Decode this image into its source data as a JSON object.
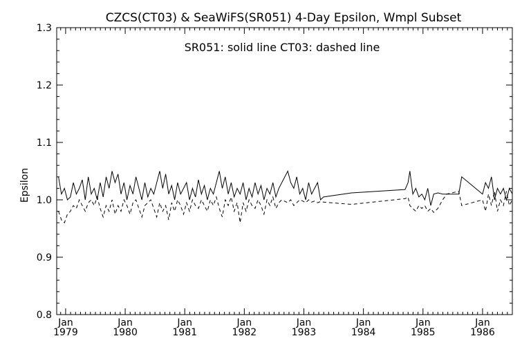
{
  "chart_data": {
    "type": "line",
    "title": "CZCS(CT03) & SeaWiFS(SR051) 4-Day Epsilon, Wmpl Subset",
    "annotation": "SR051: solid line   CT03: dashed line",
    "ylabel": "Epsilon",
    "xlabel": "",
    "ylim": [
      0.8,
      1.3
    ],
    "yticks": [
      "0.8",
      "0.9",
      "1.0",
      "1.1",
      "1.2",
      "1.3"
    ],
    "xlim": [
      1978.85,
      1986.5
    ],
    "xticks": [
      {
        "month": "Jan",
        "year": "1979"
      },
      {
        "month": "Jan",
        "year": "1980"
      },
      {
        "month": "Jan",
        "year": "1981"
      },
      {
        "month": "Jan",
        "year": "1982"
      },
      {
        "month": "Jan",
        "year": "1983"
      },
      {
        "month": "Jan",
        "year": "1984"
      },
      {
        "month": "Jan",
        "year": "1985"
      },
      {
        "month": "Jan",
        "year": "1986"
      }
    ],
    "grid": false,
    "legend": "none",
    "series": [
      {
        "name": "SR051",
        "style": "solid",
        "x": [
          1978.88,
          1978.93,
          1978.98,
          1979.03,
          1979.08,
          1979.13,
          1979.18,
          1979.23,
          1979.28,
          1979.33,
          1979.38,
          1979.43,
          1979.48,
          1979.53,
          1979.58,
          1979.63,
          1979.68,
          1979.73,
          1979.78,
          1979.83,
          1979.88,
          1979.93,
          1979.98,
          1980.03,
          1980.08,
          1980.13,
          1980.18,
          1980.23,
          1980.28,
          1980.33,
          1980.38,
          1980.43,
          1980.48,
          1980.53,
          1980.58,
          1980.63,
          1980.68,
          1980.73,
          1980.78,
          1980.83,
          1980.88,
          1980.93,
          1980.98,
          1981.03,
          1981.08,
          1981.13,
          1981.18,
          1981.23,
          1981.28,
          1981.33,
          1981.38,
          1981.43,
          1981.48,
          1981.53,
          1981.58,
          1981.63,
          1981.68,
          1981.73,
          1981.78,
          1981.83,
          1981.88,
          1981.93,
          1981.98,
          1982.03,
          1982.08,
          1982.13,
          1982.18,
          1982.23,
          1982.28,
          1982.33,
          1982.38,
          1982.43,
          1982.48,
          1982.53,
          1982.58,
          1982.63,
          1982.73,
          1982.78,
          1982.83,
          1982.88,
          1982.93,
          1982.98,
          1983.03,
          1983.08,
          1983.13,
          1983.18,
          1983.23,
          1983.28,
          1983.33,
          1983.8,
          1984.7,
          1984.75,
          1984.78,
          1984.83,
          1984.88,
          1984.93,
          1984.98,
          1985.03,
          1985.08,
          1985.13,
          1985.18,
          1985.25,
          1985.33,
          1985.4,
          1985.6,
          1985.65,
          1986.0,
          1986.05,
          1986.1,
          1986.15,
          1986.2,
          1986.25,
          1986.3,
          1986.35,
          1986.4,
          1986.45,
          1986.5
        ],
        "y": [
          1.04,
          1.01,
          1.02,
          1.0,
          1.005,
          1.03,
          1.01,
          1.02,
          1.035,
          1.0,
          1.04,
          1.01,
          1.02,
          1.0,
          1.03,
          1.005,
          1.04,
          1.02,
          1.05,
          1.03,
          1.045,
          1.01,
          1.03,
          1.0,
          1.025,
          1.01,
          1.04,
          1.02,
          1.0,
          1.03,
          1.005,
          1.02,
          1.01,
          1.03,
          1.05,
          1.02,
          1.045,
          1.01,
          1.025,
          1.0,
          1.03,
          1.01,
          1.02,
          1.03,
          1.0,
          1.02,
          1.005,
          1.035,
          1.01,
          1.025,
          1.0,
          1.02,
          1.01,
          1.03,
          1.05,
          1.02,
          1.04,
          1.01,
          1.03,
          1.005,
          1.02,
          1.01,
          1.03,
          1.0,
          1.02,
          1.005,
          1.03,
          1.01,
          1.025,
          1.0,
          1.02,
          1.01,
          1.03,
          1.005,
          1.02,
          1.03,
          1.05,
          1.03,
          1.02,
          1.04,
          1.01,
          1.02,
          1.0,
          1.03,
          1.01,
          1.02,
          1.03,
          1.0,
          1.005,
          1.012,
          1.018,
          1.03,
          1.05,
          1.01,
          1.02,
          1.005,
          1.01,
          1.0,
          1.02,
          0.99,
          1.01,
          1.012,
          1.01,
          1.01,
          1.01,
          1.04,
          1.01,
          1.03,
          1.02,
          1.04,
          1.0,
          1.02,
          1.01,
          1.02,
          1.0,
          1.02,
          1.01
        ]
      },
      {
        "name": "CT03",
        "style": "dashed",
        "x": [
          1978.88,
          1978.93,
          1978.98,
          1979.03,
          1979.08,
          1979.13,
          1979.18,
          1979.23,
          1979.28,
          1979.33,
          1979.38,
          1979.43,
          1979.48,
          1979.53,
          1979.58,
          1979.63,
          1979.68,
          1979.73,
          1979.78,
          1979.83,
          1979.88,
          1979.93,
          1979.98,
          1980.03,
          1980.08,
          1980.13,
          1980.18,
          1980.23,
          1980.28,
          1980.33,
          1980.38,
          1980.43,
          1980.48,
          1980.53,
          1980.58,
          1980.63,
          1980.68,
          1980.73,
          1980.78,
          1980.83,
          1980.88,
          1980.93,
          1980.98,
          1981.03,
          1981.08,
          1981.13,
          1981.18,
          1981.23,
          1981.28,
          1981.33,
          1981.38,
          1981.43,
          1981.48,
          1981.53,
          1981.58,
          1981.63,
          1981.68,
          1981.73,
          1981.78,
          1981.83,
          1981.88,
          1981.93,
          1981.98,
          1982.03,
          1982.08,
          1982.13,
          1982.18,
          1982.23,
          1982.28,
          1982.33,
          1982.38,
          1982.43,
          1982.48,
          1982.53,
          1982.58,
          1982.63,
          1982.73,
          1982.78,
          1982.83,
          1982.88,
          1982.93,
          1982.98,
          1983.03,
          1983.08,
          1983.13,
          1983.18,
          1983.23,
          1983.28,
          1983.33,
          1983.8,
          1984.7,
          1984.75,
          1984.78,
          1984.83,
          1984.88,
          1984.93,
          1984.98,
          1985.03,
          1985.08,
          1985.13,
          1985.18,
          1985.25,
          1985.33,
          1985.4,
          1985.6,
          1985.65,
          1986.0,
          1986.05,
          1986.1,
          1986.15,
          1986.2,
          1986.25,
          1986.3,
          1986.35,
          1986.4,
          1986.45,
          1986.5
        ],
        "y": [
          0.98,
          0.965,
          0.96,
          0.975,
          0.98,
          0.99,
          0.985,
          1.0,
          0.99,
          0.98,
          0.995,
          1.0,
          0.99,
          1.005,
          0.985,
          0.97,
          0.99,
          0.98,
          1.0,
          0.975,
          0.99,
          0.98,
          1.0,
          0.99,
          0.975,
          0.995,
          1.0,
          0.985,
          0.97,
          0.99,
          0.995,
          1.0,
          0.985,
          0.97,
          0.995,
          0.98,
          0.99,
          0.965,
          0.995,
          0.98,
          1.0,
          0.99,
          0.975,
          0.995,
          0.98,
          1.0,
          0.99,
          0.985,
          1.0,
          0.99,
          0.98,
          1.0,
          0.99,
          1.005,
          0.985,
          0.97,
          1.0,
          0.99,
          1.005,
          0.98,
          0.995,
          0.96,
          0.995,
          0.98,
          1.0,
          0.99,
          0.985,
          1.0,
          0.99,
          0.975,
          1.0,
          0.99,
          1.005,
          0.985,
          0.995,
          1.0,
          0.995,
          1.0,
          0.99,
          0.995,
          1.0,
          0.998,
          0.995,
          1.0,
          0.996,
          0.998,
          0.995,
          0.997,
          0.996,
          0.992,
          1.002,
          1.005,
          0.99,
          0.985,
          0.98,
          0.99,
          0.985,
          0.99,
          0.98,
          0.985,
          0.978,
          0.985,
          1.0,
          1.01,
          1.015,
          0.99,
          1.0,
          0.98,
          1.01,
          0.99,
          1.015,
          0.98,
          1.0,
          0.99,
          1.015,
          0.99,
          1.0
        ]
      }
    ]
  }
}
